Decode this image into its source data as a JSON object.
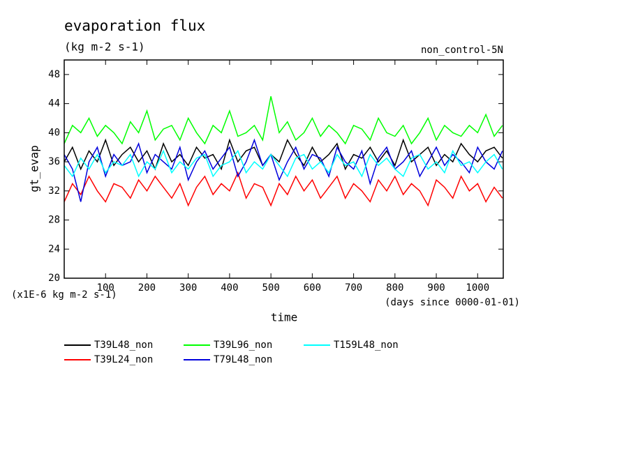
{
  "chart_data": {
    "type": "line",
    "title": "evaporation flux",
    "subtitle": "(kg m-2 s-1)",
    "annotation": "non_control-5N",
    "y_label": "gt_evap",
    "y_unit_note": "(x1E-6 kg m-2 s-1)",
    "x_label": "time",
    "x_unit_note": "(days since 0000-01-01)",
    "x": [
      0,
      20,
      40,
      60,
      80,
      100,
      120,
      140,
      160,
      180,
      200,
      220,
      240,
      260,
      280,
      300,
      320,
      340,
      360,
      380,
      400,
      420,
      440,
      460,
      480,
      500,
      520,
      540,
      560,
      580,
      600,
      620,
      640,
      660,
      680,
      700,
      720,
      740,
      760,
      780,
      800,
      820,
      840,
      860,
      880,
      900,
      920,
      940,
      960,
      980,
      1000,
      1020,
      1040,
      1060
    ],
    "xlim": [
      0,
      1062
    ],
    "xticks": [
      100,
      200,
      300,
      400,
      500,
      600,
      700,
      800,
      900,
      1000
    ],
    "ylim": [
      20,
      50
    ],
    "yticks": [
      20,
      24,
      28,
      32,
      36,
      40,
      44,
      48
    ],
    "series": [
      {
        "name": "T39L48_non",
        "color": "#000000",
        "values": [
          36,
          38,
          35,
          37.5,
          36,
          39,
          35.5,
          37,
          38,
          36,
          37.5,
          35,
          38.5,
          36,
          37,
          35.5,
          38,
          36.5,
          37,
          35,
          39,
          36,
          37.5,
          38,
          35.5,
          37,
          36,
          39,
          37,
          35.5,
          38,
          36,
          37,
          38.5,
          35,
          37,
          36.5,
          38,
          36,
          37.5,
          35.5,
          39,
          36,
          37,
          38,
          35.5,
          37,
          36,
          38.5,
          37,
          36,
          37.5,
          38,
          36.5
        ]
      },
      {
        "name": "T39L24_non",
        "color": "#ff0000",
        "values": [
          30.5,
          33,
          31.5,
          34,
          32,
          30.5,
          33,
          32.5,
          31,
          33.5,
          32,
          34,
          32.5,
          31,
          33,
          30,
          32.5,
          34,
          31.5,
          33,
          32,
          34.5,
          31,
          33,
          32.5,
          30,
          33,
          31.5,
          34,
          32,
          33.5,
          31,
          32.5,
          34,
          31,
          33,
          32,
          30.5,
          33.5,
          32,
          34,
          31.5,
          33,
          32,
          30,
          33.5,
          32.5,
          31,
          34,
          32,
          33,
          30.5,
          32.5,
          31
        ]
      },
      {
        "name": "T39L96_non",
        "color": "#00ff00",
        "values": [
          38.5,
          41,
          40,
          42,
          39.5,
          41,
          40,
          38.5,
          41.5,
          40,
          43,
          39,
          40.5,
          41,
          39,
          42,
          40,
          38.5,
          41,
          40,
          43,
          39.5,
          40,
          41,
          39,
          45,
          40,
          41.5,
          39,
          40,
          42,
          39.5,
          41,
          40,
          38.5,
          41,
          40.5,
          39,
          42,
          40,
          39.5,
          41,
          38.5,
          40,
          42,
          39,
          41,
          40,
          39.5,
          41,
          40,
          42.5,
          39.5,
          41
        ]
      },
      {
        "name": "T79L48_non",
        "color": "#0000dd",
        "values": [
          37,
          35,
          30.5,
          36,
          38,
          34,
          37,
          35.5,
          36,
          38.5,
          34.5,
          37,
          36,
          35,
          38,
          33.5,
          36,
          37.5,
          35,
          36.5,
          38,
          34,
          36,
          39,
          35.5,
          37,
          33.5,
          36,
          38,
          35,
          37,
          36.5,
          34,
          38,
          36,
          35,
          37.5,
          33,
          36.5,
          38,
          35,
          36,
          37.5,
          34,
          36,
          38,
          35.5,
          37,
          36,
          34.5,
          38,
          36,
          35,
          37.5
        ]
      },
      {
        "name": "T159L48_non",
        "color": "#00ffff",
        "values": [
          35.5,
          34,
          36.5,
          35,
          37,
          34.5,
          36,
          35.5,
          37,
          34,
          36,
          35,
          37.5,
          34.5,
          36,
          35,
          36.5,
          37,
          34,
          35.5,
          36,
          37.5,
          34.5,
          36,
          35,
          37,
          35.5,
          34,
          36.5,
          37,
          35,
          36,
          34.5,
          37,
          35.5,
          36,
          34,
          37,
          35.5,
          36.5,
          35,
          34,
          36.5,
          37,
          35,
          36,
          34.5,
          37.5,
          35.5,
          36,
          34.5,
          36,
          37,
          35
        ]
      }
    ]
  }
}
